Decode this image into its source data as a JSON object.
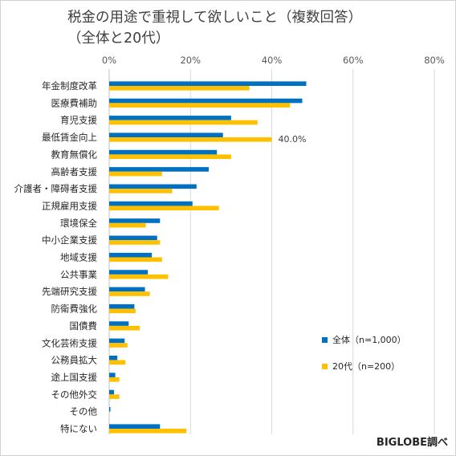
{
  "title": "税金の用途で重視して欲しいこと（複数回答）\n（全体と20代）",
  "source": "BIGLOBE調べ",
  "colors": {
    "series_total": "#0070C0",
    "series_20s": "#FFC000",
    "grid": "#d9d9d9"
  },
  "chart_data": {
    "type": "bar",
    "orientation": "horizontal",
    "title": "税金の用途で重視して欲しいこと（複数回答）（全体と20代）",
    "xlabel": "",
    "ylabel": "",
    "xlim": [
      0,
      80
    ],
    "x_ticks": [
      "0%",
      "20%",
      "40%",
      "60%",
      "80%"
    ],
    "x_tick_values": [
      0,
      20,
      40,
      60,
      80
    ],
    "x_axis_position": "top",
    "grid": true,
    "legend_position": "lower-right",
    "categories": [
      "年金制度改革",
      "医療費補助",
      "育児支援",
      "最低賃金向上",
      "教育無償化",
      "高齢者支援",
      "介護者・障碍者支援",
      "正規雇用支援",
      "環境保全",
      "中小企業支援",
      "地域支援",
      "公共事業",
      "先端研究支援",
      "防衛費強化",
      "国債費",
      "文化芸術支援",
      "公務員拡大",
      "途上国支援",
      "その他外交",
      "その他",
      "特にない"
    ],
    "series": [
      {
        "name": "全体（n=1,000）",
        "values": [
          48.5,
          47.5,
          30.0,
          28.0,
          26.5,
          24.5,
          21.5,
          20.5,
          12.5,
          11.8,
          10.5,
          9.5,
          8.8,
          6.2,
          4.8,
          3.8,
          2.0,
          1.5,
          1.2,
          0.3,
          12.5
        ]
      },
      {
        "name": "20代（n=200）",
        "values": [
          34.5,
          44.5,
          36.5,
          40.0,
          30.0,
          13.0,
          15.5,
          27.0,
          9.0,
          12.5,
          13.0,
          14.5,
          10.0,
          6.5,
          7.5,
          4.5,
          4.0,
          2.5,
          2.5,
          0.0,
          19.0
        ]
      }
    ],
    "data_labels": [
      {
        "category": "最低賃金向上",
        "series": "20代（n=200）",
        "text": "40.0%"
      }
    ]
  }
}
